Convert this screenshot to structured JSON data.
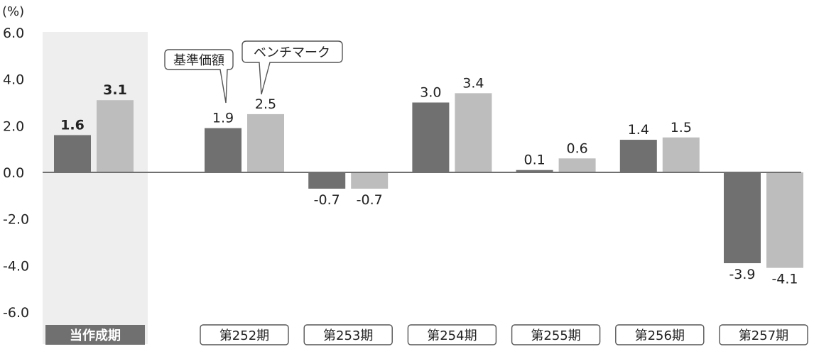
{
  "chart_data": {
    "type": "bar",
    "unit_label": "(%)",
    "ylim": [
      -6.0,
      6.0
    ],
    "yticks": [
      "6.0",
      "4.0",
      "2.0",
      "0.0",
      "-2.0",
      "-4.0",
      "-6.0"
    ],
    "current_period": {
      "label": "当作成期",
      "values": [
        1.6,
        3.1
      ],
      "value_labels": [
        "1.6",
        "3.1"
      ]
    },
    "categories": [
      "第252期",
      "第253期",
      "第254期",
      "第255期",
      "第256期",
      "第257期"
    ],
    "series": [
      {
        "name": "基準価額",
        "values": [
          1.9,
          -0.7,
          3.0,
          0.1,
          1.4,
          -3.9
        ],
        "value_labels": [
          "1.9",
          "-0.7",
          "3.0",
          "0.1",
          "1.4",
          "-3.9"
        ]
      },
      {
        "name": "ベンチマーク",
        "values": [
          2.5,
          -0.7,
          3.4,
          0.6,
          1.5,
          -4.1
        ],
        "value_labels": [
          "2.5",
          "-0.7",
          "3.4",
          "0.6",
          "1.5",
          "-4.1"
        ]
      }
    ],
    "colors": {
      "series_dark": "#707070",
      "series_light": "#bdbdbd",
      "highlight_bg": "#eeeeee",
      "label_bg": "#707070",
      "axis": "#707070"
    },
    "grid": false
  }
}
